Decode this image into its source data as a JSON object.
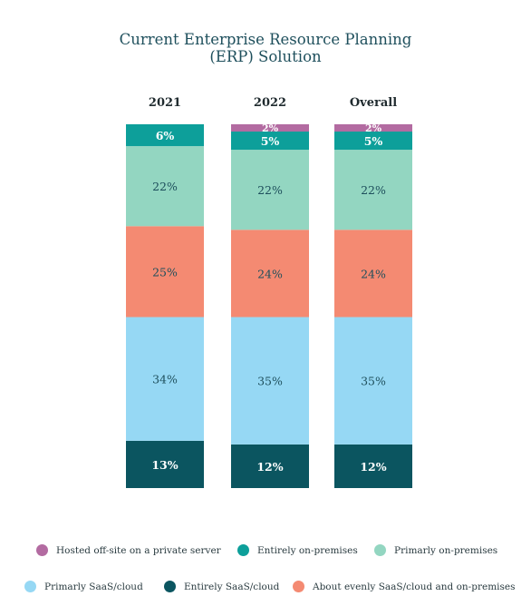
{
  "chart_data": {
    "type": "bar",
    "stacked": true,
    "title": "Current Enterprise Resource Planning (ERP) Solution",
    "title_lines": [
      "Current Enterprise Resource Planning",
      "(ERP) Solution"
    ],
    "categories": [
      "2021",
      "2022",
      "Overall"
    ],
    "ylim": [
      0,
      100
    ],
    "grid": false,
    "legend_position": "bottom",
    "series": [
      {
        "name": "Entirely SaaS/cloud",
        "color": "#0b5560",
        "label_color": "#ffffff",
        "values": [
          13,
          12,
          12
        ]
      },
      {
        "name": "Primarly SaaS/cloud",
        "color": "#96d8f4",
        "label_color": "#1e4f5c",
        "values": [
          34,
          35,
          35
        ]
      },
      {
        "name": "About evenly SaaS/cloud  and on-premises",
        "color": "#f48a72",
        "label_color": "#1e4f5c",
        "values": [
          25,
          24,
          24
        ]
      },
      {
        "name": "Primarly on-premises",
        "color": "#93d6c1",
        "label_color": "#1e4f5c",
        "values": [
          22,
          22,
          22
        ]
      },
      {
        "name": "Entirely on-premises",
        "color": "#0d9f9a",
        "label_color": "#ffffff",
        "values": [
          6,
          5,
          5
        ]
      },
      {
        "name": "Hosted off-site on a private server",
        "color": "#b36ba1",
        "label_color": "#ffffff",
        "values": [
          0,
          2,
          2
        ]
      }
    ],
    "data_labels": [
      [
        "13%",
        "12%",
        "12%"
      ],
      [
        "34%",
        "35%",
        "35%"
      ],
      [
        "25%",
        "24%",
        "24%"
      ],
      [
        "22%",
        "22%",
        "22%"
      ],
      [
        "6%",
        "5%",
        "5%"
      ],
      [
        "",
        "2%",
        "2%"
      ]
    ],
    "legend": [
      {
        "label": "Hosted off-site on a private server",
        "color": "#b36ba1"
      },
      {
        "label": "Entirely on-premises",
        "color": "#0d9f9a"
      },
      {
        "label": "Primarly on-premises",
        "color": "#93d6c1"
      },
      {
        "label": "Primarly SaaS/cloud",
        "color": "#96d8f4"
      },
      {
        "label": "Entirely SaaS/cloud",
        "color": "#0b5560"
      },
      {
        "label": "About evenly SaaS/cloud  and on-premises",
        "color": "#f48a72"
      }
    ]
  }
}
